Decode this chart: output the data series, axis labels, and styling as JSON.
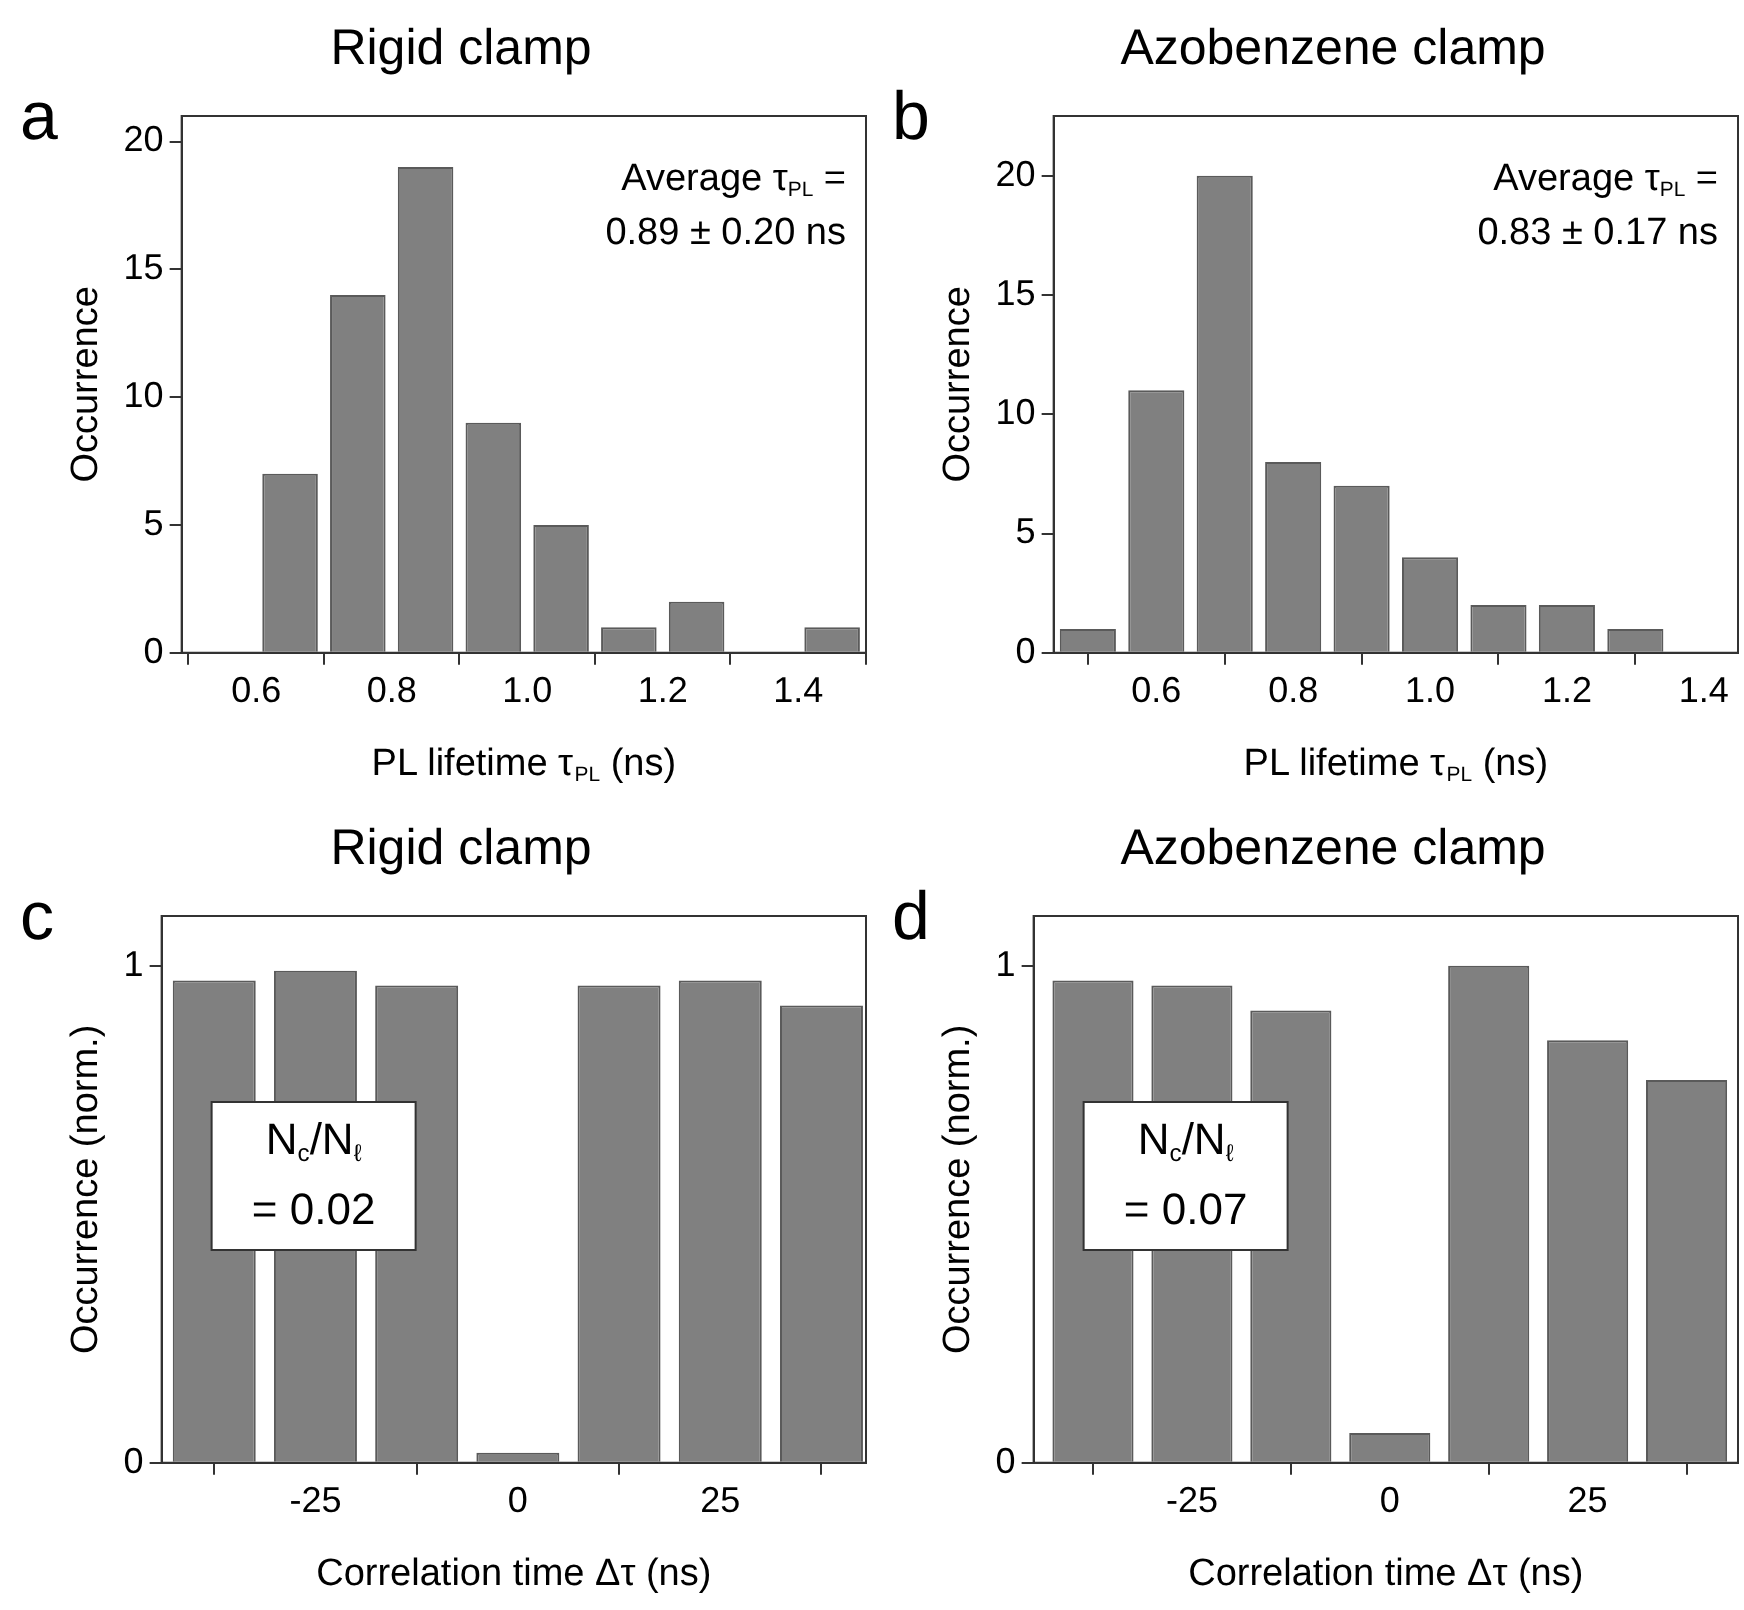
{
  "chart_data": [
    {
      "type": "histogram",
      "title": "Rigid clamp",
      "xlabel": "PL lifetime τ$_{PL}$ (ns)",
      "ylabel": "Occurrence",
      "annotations": [
        "a",
        "Average τ$_{PL}$ =\n0.89 ± 0.20 ns"
      ],
      "color": "#808080",
      "bins": [
        0.6,
        0.7,
        0.8,
        0.9,
        1.0,
        1.1,
        1.2,
        1.3,
        1.4,
        1.5
      ],
      "values": [
        7,
        14,
        19,
        9,
        5,
        1,
        2,
        0,
        1
      ],
      "xlim": [
        0.49,
        1.5
      ],
      "xticks": [
        0.6,
        0.8,
        {
          "value": 1,
          "label": "1.0"
        },
        1.2,
        1.4
      ],
      "ylim": [
        0,
        21
      ],
      "yticks": [
        0,
        5,
        10,
        15,
        20
      ]
    },
    {
      "type": "histogram",
      "title": "Azobenzene clamp",
      "xlabel": "PL lifetime τ$_{PL}$ (ns)",
      "ylabel": "Occurrence",
      "annotations": [
        "b",
        "Average τ$_{PL}$ =\n0.83 ± 0.17 ns"
      ],
      "color": "#808080",
      "bins": [
        0.45,
        0.55,
        0.65,
        0.75,
        0.85,
        0.95,
        1.05,
        1.15,
        1.25,
        1.35
      ],
      "values": [
        1,
        11,
        20,
        8,
        7,
        4,
        2,
        2,
        1
      ],
      "xlim": [
        0.45,
        1.45
      ],
      "xticks": [
        0.6,
        0.8,
        {
          "value": 1,
          "label": "1.0"
        },
        1.2,
        1.4
      ],
      "ylim": [
        0,
        22.5
      ],
      "yticks": [
        0,
        5,
        10,
        15,
        20
      ]
    },
    {
      "type": "bar",
      "title": "Rigid clamp",
      "xlabel": "Correlation time Δτ (ns)",
      "ylabel": "Occurrence (norm.)",
      "annotations": [
        "c",
        "N$_{c}$/N$_{ℓ}$\n= 0.02"
      ],
      "color": "#808080",
      "x": [
        -37.5,
        -25,
        -12.5,
        0,
        12.5,
        25,
        37.5
      ],
      "values": [
        0.97,
        0.99,
        0.96,
        0.02,
        0.96,
        0.97,
        0.92
      ],
      "xlim": [
        -44,
        43
      ],
      "xticks": [
        -25,
        0,
        25
      ],
      "ylim": [
        0,
        1.1
      ],
      "yticks": [
        0,
        1
      ]
    },
    {
      "type": "bar",
      "title": "Azobenzene clamp",
      "xlabel": "Correlation time Δτ (ns)",
      "ylabel": "Occurrence (norm.)",
      "annotations": [
        "d",
        "N$_{c}$/N$_{ℓ}$\n= 0.07"
      ],
      "color": "#808080",
      "x": [
        -37.5,
        -25,
        -12.5,
        0,
        12.5,
        25,
        37.5
      ],
      "values": [
        0.97,
        0.96,
        0.91,
        0.06,
        1.0,
        0.85,
        0.77
      ],
      "xlim": [
        -45,
        44
      ],
      "xticks": [
        -25,
        0,
        25
      ],
      "ylim": [
        0,
        1.1
      ],
      "yticks": [
        0,
        1
      ]
    }
  ]
}
